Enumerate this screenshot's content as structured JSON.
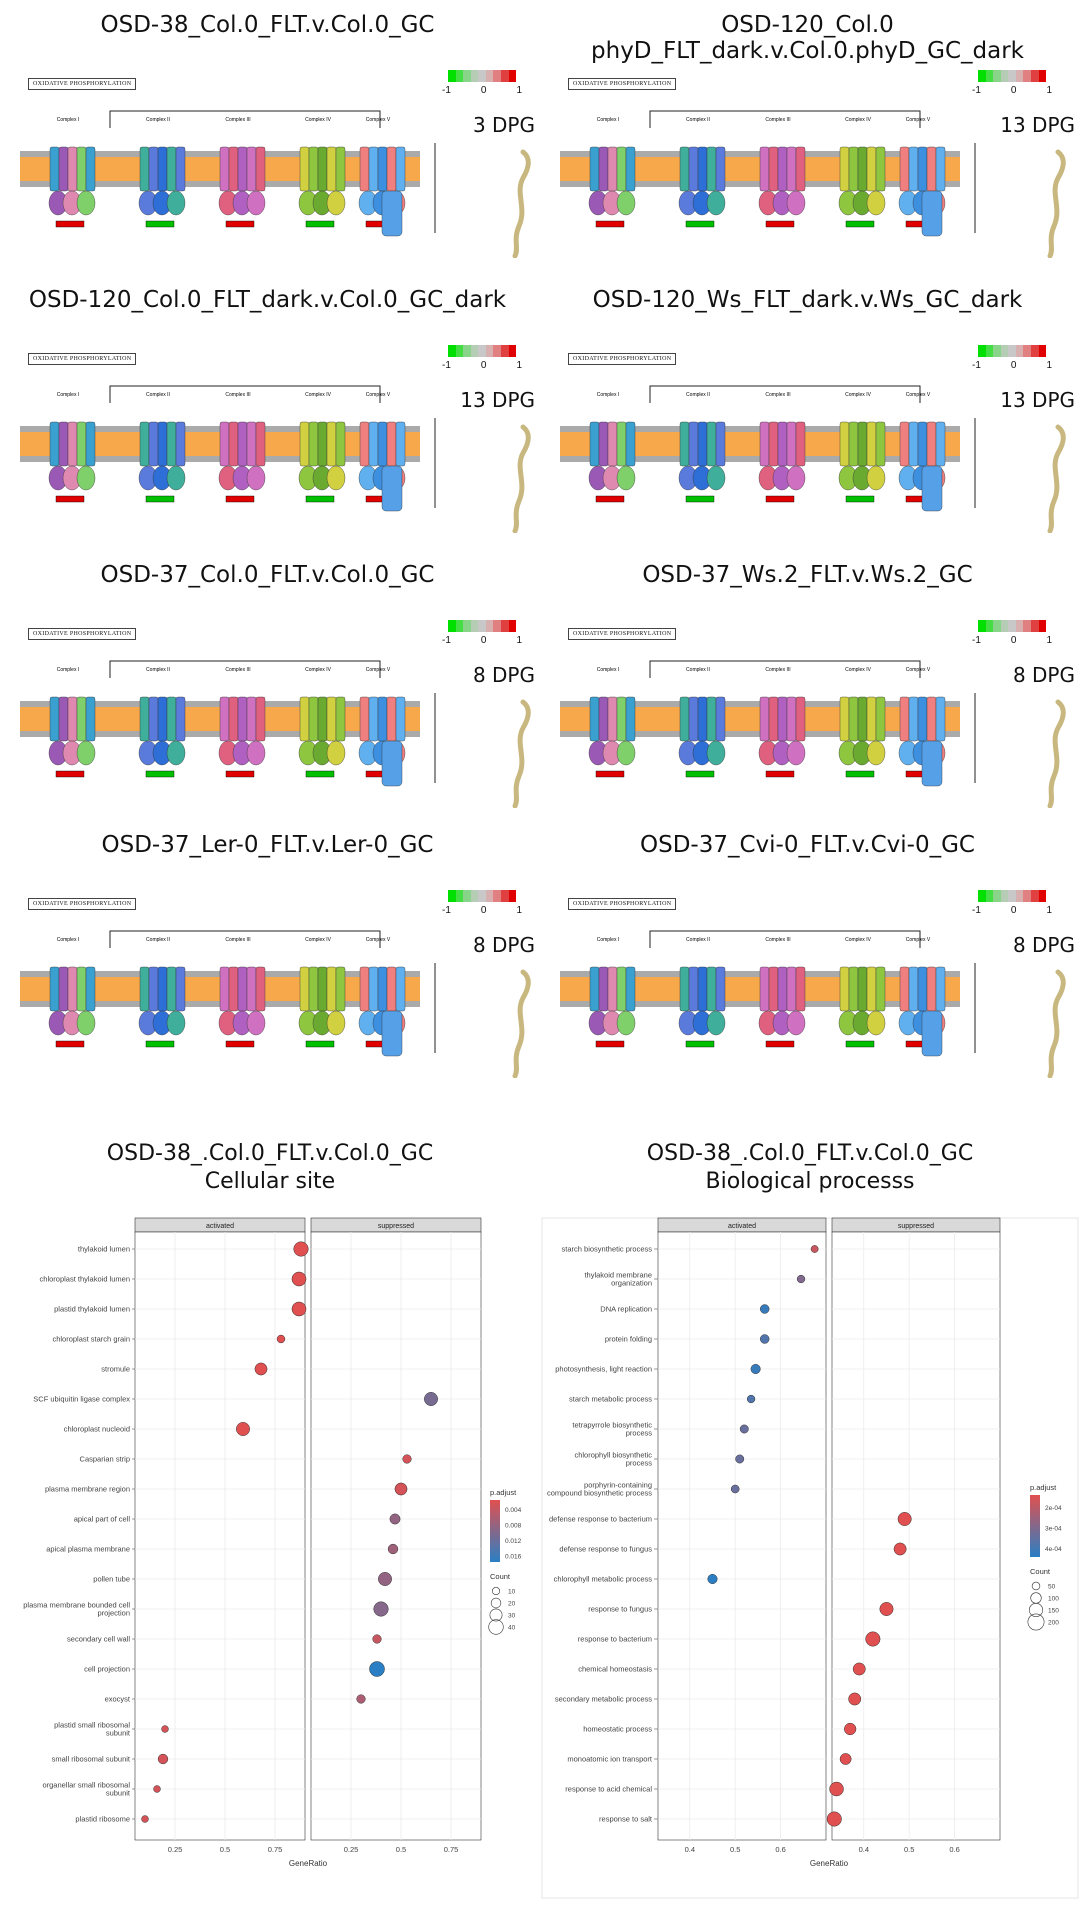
{
  "pathway_panels": [
    {
      "title": "OSD-38_Col.0_FLT.v.Col.0_GC",
      "stage": "3 DPG"
    },
    {
      "title": "OSD-120_Col.0 phyD_FLT_dark.v.Col.0.phyD_GC_dark",
      "stage": "13 DPG"
    },
    {
      "title": "OSD-120_Col.0_FLT_dark.v.Col.0_GC_dark",
      "stage": "13 DPG"
    },
    {
      "title": "OSD-120_Ws_FLT_dark.v.Ws_GC_dark",
      "stage": "13 DPG"
    },
    {
      "title": "OSD-37_Col.0_FLT.v.Col.0_GC",
      "stage": "8 DPG"
    },
    {
      "title": "OSD-37_Ws.2_FLT.v.Ws.2_GC",
      "stage": "8 DPG"
    },
    {
      "title": "OSD-37_Ler-0_FLT.v.Ler-0_GC",
      "stage": "8 DPG"
    },
    {
      "title": "OSD-37_Cvi-0_FLT.v.Cvi-0_GC",
      "stage": "8 DPG"
    }
  ],
  "pathway": {
    "name": "OXIDATIVE PHOSPHORYLATION",
    "complexes": [
      "Complex I",
      "Complex II",
      "Complex III",
      "Complex IV",
      "Complex V"
    ],
    "colorbar_ticks": [
      "-1",
      "0",
      "1"
    ],
    "colors": {
      "low": "#00e000",
      "mid": "#bdbdbd",
      "high": "#e00000"
    }
  },
  "go_panels": [
    {
      "title_line1": "OSD-38_.Col.0_FLT.v.Col.0_GC",
      "title_line2": "Cellular site"
    },
    {
      "title_line1": "OSD-38_.Col.0_FLT.v.Col.0_GC",
      "title_line2": "Biological processs"
    }
  ],
  "chart_data": [
    {
      "type": "scatter",
      "facets": [
        "activated",
        "suppressed"
      ],
      "xlabel": "GeneRatio",
      "x_ticks": [
        0.25,
        0.5,
        0.75
      ],
      "xlim": [
        0.05,
        0.9
      ],
      "legend_padjust_label": "p.adjust",
      "legend_padjust_ticks": [
        "0.004",
        "0.008",
        "0.012",
        "0.016"
      ],
      "legend_count_label": "Count",
      "legend_count_ticks": [
        10,
        20,
        30,
        40
      ],
      "legend_position": "right",
      "colors": {
        "low_padj": "#e05050",
        "high_padj": "#2a7fc4"
      },
      "categories": [
        "thylakoid lumen",
        "chloroplast thylakoid lumen",
        "plastid thylakoid lumen",
        "chloroplast starch grain",
        "stromule",
        "SCF ubiquitin ligase complex",
        "chloroplast nucleoid",
        "Casparian strip",
        "plasma membrane region",
        "apical part of cell",
        "apical plasma membrane",
        "pollen tube",
        "plasma membrane bounded cell projection",
        "secondary cell wall",
        "cell projection",
        "exocyst",
        "plastid small ribosomal subunit",
        "small ribosomal subunit",
        "organellar small ribosomal subunit",
        "plastid ribosome"
      ],
      "points": [
        {
          "category": "thylakoid lumen",
          "facet": "activated",
          "x": 0.88,
          "count": 40,
          "padj": 0.001
        },
        {
          "category": "chloroplast thylakoid lumen",
          "facet": "activated",
          "x": 0.87,
          "count": 38,
          "padj": 0.001
        },
        {
          "category": "plastid thylakoid lumen",
          "facet": "activated",
          "x": 0.87,
          "count": 38,
          "padj": 0.001
        },
        {
          "category": "chloroplast starch grain",
          "facet": "activated",
          "x": 0.78,
          "count": 12,
          "padj": 0.002
        },
        {
          "category": "stromule",
          "facet": "activated",
          "x": 0.68,
          "count": 30,
          "padj": 0.002
        },
        {
          "category": "SCF ubiquitin ligase complex",
          "facet": "suppressed",
          "x": 0.65,
          "count": 35,
          "padj": 0.01
        },
        {
          "category": "chloroplast nucleoid",
          "facet": "activated",
          "x": 0.59,
          "count": 35,
          "padj": 0.002
        },
        {
          "category": "Casparian strip",
          "facet": "suppressed",
          "x": 0.53,
          "count": 15,
          "padj": 0.003
        },
        {
          "category": "plasma membrane region",
          "facet": "suppressed",
          "x": 0.5,
          "count": 30,
          "padj": 0.003
        },
        {
          "category": "apical part of cell",
          "facet": "suppressed",
          "x": 0.47,
          "count": 22,
          "padj": 0.008
        },
        {
          "category": "apical plasma membrane",
          "facet": "suppressed",
          "x": 0.46,
          "count": 20,
          "padj": 0.007
        },
        {
          "category": "pollen tube",
          "facet": "suppressed",
          "x": 0.42,
          "count": 35,
          "padj": 0.008
        },
        {
          "category": "plasma membrane bounded cell projection",
          "facet": "suppressed",
          "x": 0.4,
          "count": 40,
          "padj": 0.009
        },
        {
          "category": "secondary cell wall",
          "facet": "suppressed",
          "x": 0.38,
          "count": 15,
          "padj": 0.004
        },
        {
          "category": "cell projection",
          "facet": "suppressed",
          "x": 0.38,
          "count": 42,
          "padj": 0.016
        },
        {
          "category": "exocyst",
          "facet": "suppressed",
          "x": 0.3,
          "count": 15,
          "padj": 0.006
        },
        {
          "category": "plastid small ribosomal subunit",
          "facet": "activated",
          "x": 0.2,
          "count": 8,
          "padj": 0.003
        },
        {
          "category": "small ribosomal subunit",
          "facet": "activated",
          "x": 0.19,
          "count": 20,
          "padj": 0.003
        },
        {
          "category": "organellar small ribosomal subunit",
          "facet": "activated",
          "x": 0.16,
          "count": 8,
          "padj": 0.003
        },
        {
          "category": "plastid ribosome",
          "facet": "activated",
          "x": 0.1,
          "count": 8,
          "padj": 0.003
        }
      ]
    },
    {
      "type": "scatter",
      "facets": [
        "activated",
        "suppressed"
      ],
      "xlabel": "GeneRatio",
      "x_ticks": [
        0.4,
        0.5,
        0.6
      ],
      "xlim": [
        0.33,
        0.7
      ],
      "legend_padjust_label": "p.adjust",
      "legend_padjust_ticks": [
        "2e-04",
        "3e-04",
        "4e-04"
      ],
      "legend_count_label": "Count",
      "legend_count_ticks": [
        50,
        100,
        150,
        200
      ],
      "legend_position": "right",
      "colors": {
        "low_padj": "#e05050",
        "high_padj": "#2a7fc4"
      },
      "categories": [
        "starch biosynthetic process",
        "thylakoid membrane organization",
        "DNA replication",
        "protein folding",
        "photosynthesis, light reaction",
        "starch metabolic process",
        "tetrapyrrole biosynthetic process",
        "chlorophyll biosynthetic process",
        "porphyrin-containing compound biosynthetic process",
        "defense response to bacterium",
        "defense response to fungus",
        "chlorophyll metabolic process",
        "response to fungus",
        "response to bacterium",
        "chemical homeostasis",
        "secondary metabolic process",
        "homeostatic process",
        "monoatomic ion transport",
        "response to acid chemical",
        "response to salt"
      ],
      "category_lines": [
        [
          "starch biosynthetic process"
        ],
        [
          "thylakoid membrane",
          "organization"
        ],
        [
          "DNA replication"
        ],
        [
          "protein folding"
        ],
        [
          "photosynthesis, light reaction"
        ],
        [
          "starch metabolic process"
        ],
        [
          "tetrapyrrole biosynthetic",
          "process"
        ],
        [
          "chlorophyll biosynthetic",
          "process"
        ],
        [
          "porphyrin-containing",
          "compound biosynthetic process"
        ],
        [
          "defense response to bacterium"
        ],
        [
          "defense response to fungus"
        ],
        [
          "chlorophyll metabolic process"
        ],
        [
          "response to fungus"
        ],
        [
          "response to bacterium"
        ],
        [
          "chemical homeostasis"
        ],
        [
          "secondary metabolic process"
        ],
        [
          "homeostatic process"
        ],
        [
          "monoatomic ion transport"
        ],
        [
          "response to acid chemical"
        ],
        [
          "response to salt"
        ]
      ],
      "points": [
        {
          "category": "starch biosynthetic process",
          "facet": "activated",
          "x": 0.675,
          "count": 40,
          "padj": 0.00015
        },
        {
          "category": "thylakoid membrane organization",
          "facet": "activated",
          "x": 0.645,
          "count": 50,
          "padj": 0.0003
        },
        {
          "category": "DNA replication",
          "facet": "activated",
          "x": 0.565,
          "count": 70,
          "padj": 0.00045
        },
        {
          "category": "protein folding",
          "facet": "activated",
          "x": 0.565,
          "count": 70,
          "padj": 0.0004
        },
        {
          "category": "photosynthesis, light reaction",
          "facet": "activated",
          "x": 0.545,
          "count": 80,
          "padj": 0.00045
        },
        {
          "category": "starch metabolic process",
          "facet": "activated",
          "x": 0.535,
          "count": 50,
          "padj": 0.0004
        },
        {
          "category": "tetrapyrrole biosynthetic process",
          "facet": "activated",
          "x": 0.52,
          "count": 60,
          "padj": 0.00035
        },
        {
          "category": "chlorophyll biosynthetic process",
          "facet": "activated",
          "x": 0.51,
          "count": 60,
          "padj": 0.00035
        },
        {
          "category": "porphyrin-containing compound biosynthetic process",
          "facet": "activated",
          "x": 0.5,
          "count": 55,
          "padj": 0.00035
        },
        {
          "category": "defense response to bacterium",
          "facet": "suppressed",
          "x": 0.49,
          "count": 150,
          "padj": 0.0001
        },
        {
          "category": "defense response to fungus",
          "facet": "suppressed",
          "x": 0.48,
          "count": 130,
          "padj": 0.0001
        },
        {
          "category": "chlorophyll metabolic process",
          "facet": "activated",
          "x": 0.45,
          "count": 80,
          "padj": 0.00048
        },
        {
          "category": "response to fungus",
          "facet": "suppressed",
          "x": 0.45,
          "count": 150,
          "padj": 0.0001
        },
        {
          "category": "response to bacterium",
          "facet": "suppressed",
          "x": 0.42,
          "count": 170,
          "padj": 0.0001
        },
        {
          "category": "chemical homeostasis",
          "facet": "suppressed",
          "x": 0.39,
          "count": 130,
          "padj": 0.0001
        },
        {
          "category": "secondary metabolic process",
          "facet": "suppressed",
          "x": 0.38,
          "count": 130,
          "padj": 0.0001
        },
        {
          "category": "homeostatic process",
          "facet": "suppressed",
          "x": 0.37,
          "count": 120,
          "padj": 0.0001
        },
        {
          "category": "monoatomic ion transport",
          "facet": "suppressed",
          "x": 0.36,
          "count": 110,
          "padj": 0.0001
        },
        {
          "category": "response to acid chemical",
          "facet": "suppressed",
          "x": 0.34,
          "count": 160,
          "padj": 0.0001
        },
        {
          "category": "response to salt",
          "facet": "suppressed",
          "x": 0.335,
          "count": 170,
          "padj": 0.0001
        }
      ]
    }
  ]
}
